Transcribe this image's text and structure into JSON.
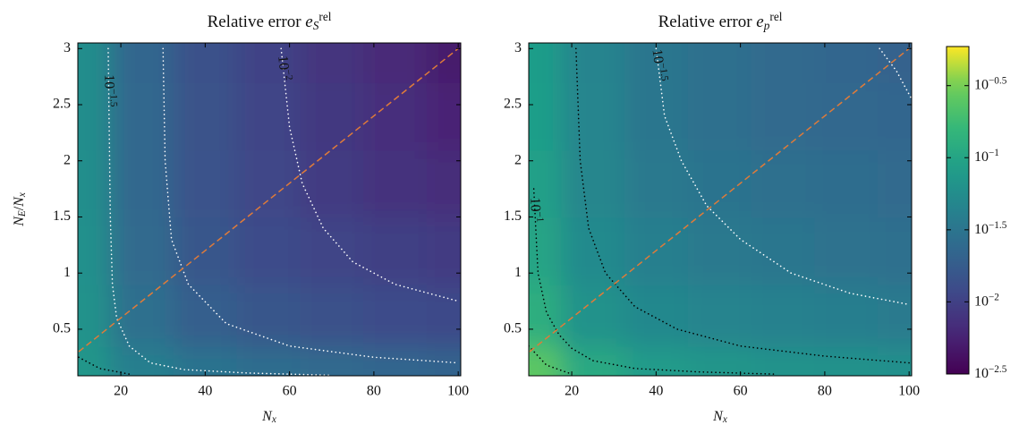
{
  "chart_data": [
    {
      "type": "heatmap",
      "title": [
        [
          "Relative error ",
          ""
        ],
        [
          "e",
          "i"
        ],
        [
          "S",
          "sub"
        ],
        [
          "rel",
          "sup"
        ]
      ],
      "xlabel": [
        [
          "N",
          "i"
        ],
        [
          "x",
          "sub"
        ]
      ],
      "ylabel": [
        [
          "N",
          "i"
        ],
        [
          "E",
          "sub"
        ],
        [
          "/",
          ""
        ],
        [
          "N",
          "i"
        ],
        [
          "x",
          "sub"
        ]
      ],
      "xlim": [
        9.8,
        100.6
      ],
      "ylim": [
        0.085,
        3.05
      ],
      "xticks": [
        20,
        40,
        60,
        80,
        100
      ],
      "yticks": [
        0.5,
        1,
        1.5,
        2,
        2.5,
        3
      ],
      "x": [
        10,
        25,
        40,
        55,
        70,
        85,
        100
      ],
      "y": [
        0.1,
        0.6,
        1.2,
        1.8,
        2.4,
        3
      ],
      "z": [
        [
          0.071,
          0.04,
          0.03,
          0.026,
          0.024,
          0.022,
          0.021
        ],
        [
          0.063,
          0.028,
          0.019,
          0.016,
          0.014,
          0.0126,
          0.0115
        ],
        [
          0.06,
          0.025,
          0.0155,
          0.0126,
          0.0107,
          0.0098,
          0.0089
        ],
        [
          0.058,
          0.023,
          0.0145,
          0.0112,
          0.0089,
          0.0076,
          0.0068
        ],
        [
          0.056,
          0.023,
          0.0141,
          0.0107,
          0.0083,
          0.0069,
          0.0058
        ],
        [
          0.056,
          0.022,
          0.0138,
          0.0105,
          0.0079,
          0.0063,
          0.005
        ]
      ],
      "contours": [
        {
          "label": [
            [
              "10",
              ""
            ],
            [
              "−1.5",
              "sup"
            ]
          ],
          "color": "#ffffff",
          "x": [
            17,
            17.5,
            18,
            19,
            22,
            27,
            35,
            50,
            70
          ],
          "y": [
            3,
            1.5,
            0.9,
            0.6,
            0.35,
            0.2,
            0.14,
            0.11,
            0.09
          ]
        },
        {
          "color": "#ffffff",
          "x": [
            30,
            30.5,
            32,
            36,
            45,
            60,
            80,
            100
          ],
          "y": [
            3,
            2,
            1.3,
            0.9,
            0.55,
            0.35,
            0.25,
            0.2
          ]
        },
        {
          "label": [
            [
              "10",
              ""
            ],
            [
              "−2",
              "sup"
            ]
          ],
          "color": "#ffffff",
          "x": [
            58,
            60,
            63,
            68,
            75,
            85,
            100
          ],
          "y": [
            3,
            2.3,
            1.8,
            1.4,
            1.1,
            0.9,
            0.75
          ]
        },
        {
          "color": "#000000",
          "x": [
            10,
            15,
            22
          ],
          "y": [
            0.25,
            0.15,
            0.1
          ]
        }
      ],
      "reference_line": {
        "color": "#e07b39",
        "x": [
          10,
          100
        ],
        "y": [
          0.3,
          3
        ]
      }
    },
    {
      "type": "heatmap",
      "title": [
        [
          "Relative error ",
          ""
        ],
        [
          "e",
          "i"
        ],
        [
          "p",
          "sub"
        ],
        [
          "rel",
          "sup"
        ]
      ],
      "xlabel": [
        [
          "N",
          "i"
        ],
        [
          "x",
          "sub"
        ]
      ],
      "xlim": [
        9.8,
        100.6
      ],
      "ylim": [
        0.085,
        3.05
      ],
      "xticks": [
        20,
        40,
        60,
        80,
        100
      ],
      "yticks": [
        0.5,
        1,
        1.5,
        2,
        2.5,
        3
      ],
      "x": [
        10,
        25,
        40,
        55,
        70,
        85,
        100
      ],
      "y": [
        0.1,
        0.6,
        1.2,
        1.8,
        2.4,
        3
      ],
      "z": [
        [
          0.25,
          0.112,
          0.079,
          0.071,
          0.066,
          0.063,
          0.06
        ],
        [
          0.126,
          0.063,
          0.05,
          0.045,
          0.042,
          0.039,
          0.036
        ],
        [
          0.1,
          0.052,
          0.04,
          0.035,
          0.032,
          0.029,
          0.028
        ],
        [
          0.089,
          0.048,
          0.035,
          0.03,
          0.028,
          0.026,
          0.024
        ],
        [
          0.085,
          0.046,
          0.032,
          0.028,
          0.025,
          0.023,
          0.022
        ],
        [
          0.083,
          0.045,
          0.032,
          0.027,
          0.024,
          0.022,
          0.02
        ]
      ],
      "contours": [
        {
          "label": [
            [
              "10",
              ""
            ],
            [
              "−1",
              "sup"
            ]
          ],
          "color": "#000000",
          "x": [
            11,
            12,
            14,
            17,
            20,
            25,
            35,
            50,
            68
          ],
          "y": [
            1.75,
            1,
            0.65,
            0.45,
            0.33,
            0.22,
            0.15,
            0.12,
            0.1
          ]
        },
        {
          "color": "#000000",
          "x": [
            21,
            22,
            24,
            28,
            35,
            45,
            60,
            80,
            100
          ],
          "y": [
            3,
            2,
            1.4,
            1,
            0.7,
            0.5,
            0.35,
            0.26,
            0.2
          ]
        },
        {
          "label": [
            [
              "10",
              ""
            ],
            [
              "−1.5",
              "sup"
            ]
          ],
          "color": "#ffffff",
          "x": [
            40,
            42,
            46,
            52,
            60,
            72,
            86,
            100
          ],
          "y": [
            3,
            2.4,
            2,
            1.6,
            1.3,
            1,
            0.82,
            0.72
          ]
        },
        {
          "color": "#000000",
          "x": [
            9.8,
            14,
            20
          ],
          "y": [
            0.35,
            0.18,
            0.1
          ]
        },
        {
          "color": "#ffffff",
          "x": [
            93,
            97,
            100.6
          ],
          "y": [
            3,
            2.8,
            2.55
          ]
        }
      ],
      "reference_line": {
        "color": "#e07b39",
        "x": [
          10,
          100
        ],
        "y": [
          0.3,
          3
        ]
      }
    }
  ],
  "colorbar": {
    "scale": "log",
    "colormap": "viridis",
    "lim": [
      0.00316,
      0.59
    ],
    "ticks": [
      {
        "value": 0.00316,
        "label": [
          [
            "10",
            ""
          ],
          [
            "−2.5",
            "sup"
          ]
        ]
      },
      {
        "value": 0.01,
        "label": [
          [
            "10",
            ""
          ],
          [
            "−2",
            "sup"
          ]
        ]
      },
      {
        "value": 0.0316,
        "label": [
          [
            "10",
            ""
          ],
          [
            "−1.5",
            "sup"
          ]
        ]
      },
      {
        "value": 0.1,
        "label": [
          [
            "10",
            ""
          ],
          [
            "−1",
            "sup"
          ]
        ]
      },
      {
        "value": 0.316,
        "label": [
          [
            "10",
            ""
          ],
          [
            "−0.5",
            "sup"
          ]
        ]
      }
    ]
  }
}
